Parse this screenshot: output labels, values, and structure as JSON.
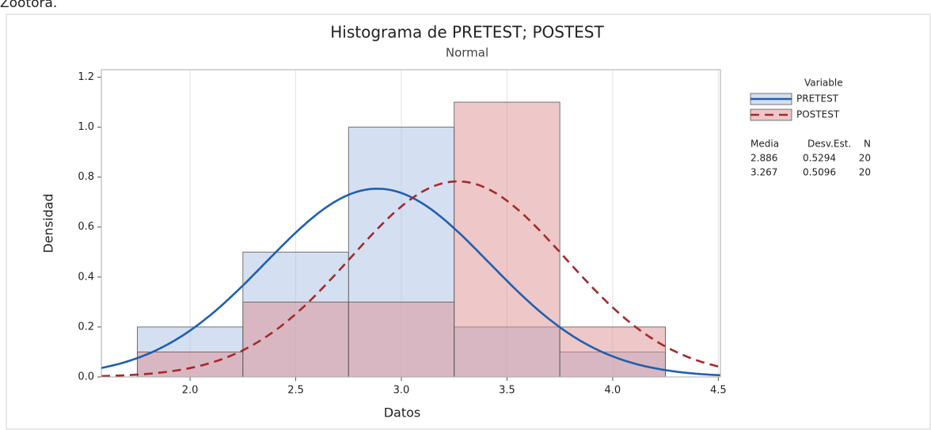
{
  "caption": "Zootora.",
  "chart_data": {
    "type": "histogram",
    "title": "Histograma de PRETEST; POSTEST",
    "subtitle": "Normal",
    "xlabel": "Datos",
    "ylabel": "Densidad",
    "bins": [
      1.75,
      2.25,
      2.75,
      3.25,
      3.75,
      4.25
    ],
    "series": [
      {
        "name": "PRETEST",
        "color": "#1f5fae",
        "fill": "#a9c0e6",
        "line_style": "solid",
        "values": [
          0.2,
          0.5,
          1.0,
          0.2,
          0.1
        ],
        "mean": 2.886,
        "sd": 0.5294,
        "n": 20
      },
      {
        "name": "POSTEST",
        "color": "#a52a2a",
        "fill": "#de8f92",
        "line_style": "dashed",
        "values": [
          0.1,
          0.3,
          0.3,
          1.1,
          0.2
        ],
        "mean": 3.267,
        "sd": 0.5096,
        "n": 20
      }
    ],
    "legend_title": "Variable",
    "stats_headers": [
      "Media",
      "Desv.Est.",
      "N"
    ],
    "xlim": [
      1.58,
      4.51
    ],
    "ylim": [
      0,
      1.23
    ],
    "xticks": [
      {
        "value": 2,
        "label": "2.0"
      },
      2.5,
      {
        "value": 3,
        "label": "3.0"
      },
      3.5,
      {
        "value": 4,
        "label": "4.0"
      },
      4.5
    ],
    "yticks": [
      {
        "value": 0,
        "label": "0.0"
      },
      0.2,
      0.4,
      0.6,
      0.8,
      {
        "value": 1,
        "label": "1.0"
      },
      1.2
    ],
    "grid": "x",
    "legend": "right"
  }
}
